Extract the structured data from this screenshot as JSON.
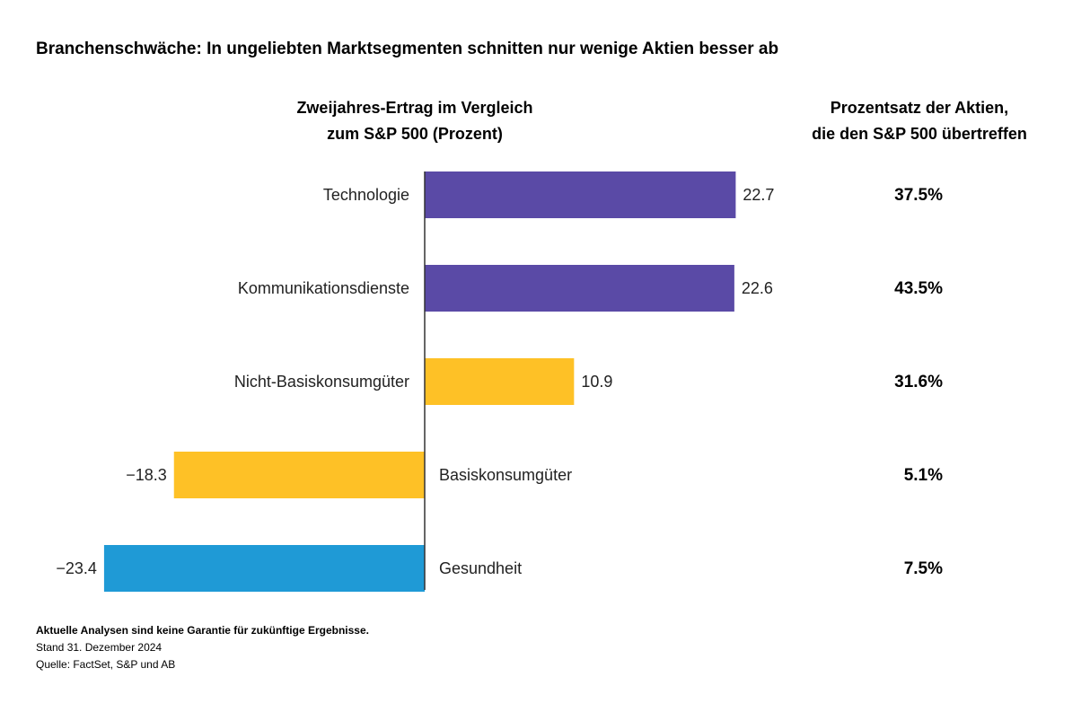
{
  "title": "Branchenschwäche: In ungeliebten Marktsegmenten schnitten nur wenige Aktien besser ab",
  "left_header": [
    "Zweijahres-Ertrag im Vergleich",
    "zum S&P 500 (Prozent)"
  ],
  "right_header": [
    "Prozentsatz der Aktien,",
    "die den S&P 500 übertreffen"
  ],
  "chart_data": {
    "type": "bar",
    "orientation": "horizontal",
    "categories": [
      "Technologie",
      "Kommunikationsdienste",
      "Nicht-Basiskonsumgüter",
      "Basiskonsumgüter",
      "Gesundheit"
    ],
    "values": [
      22.7,
      22.6,
      10.9,
      -18.3,
      -23.4
    ],
    "value_labels": [
      "22.7",
      "22.6",
      "10.9",
      "−18.3",
      "−23.4"
    ],
    "percent_outperforming": [
      "37.5%",
      "43.5%",
      "31.6%",
      "5.1%",
      "7.5%"
    ],
    "bar_colors": [
      "#5a4aa6",
      "#5a4aa6",
      "#fec126",
      "#fec126",
      "#1f9ad6"
    ],
    "xlim": [
      -23.4,
      22.7
    ],
    "xlabel": "",
    "ylabel": ""
  },
  "footer": {
    "disclaimer": "Aktuelle Analysen sind keine Garantie für zukünftige Ergebnisse.",
    "date": "Stand 31. Dezember 2024",
    "source": "Quelle: FactSet, S&P und AB"
  }
}
